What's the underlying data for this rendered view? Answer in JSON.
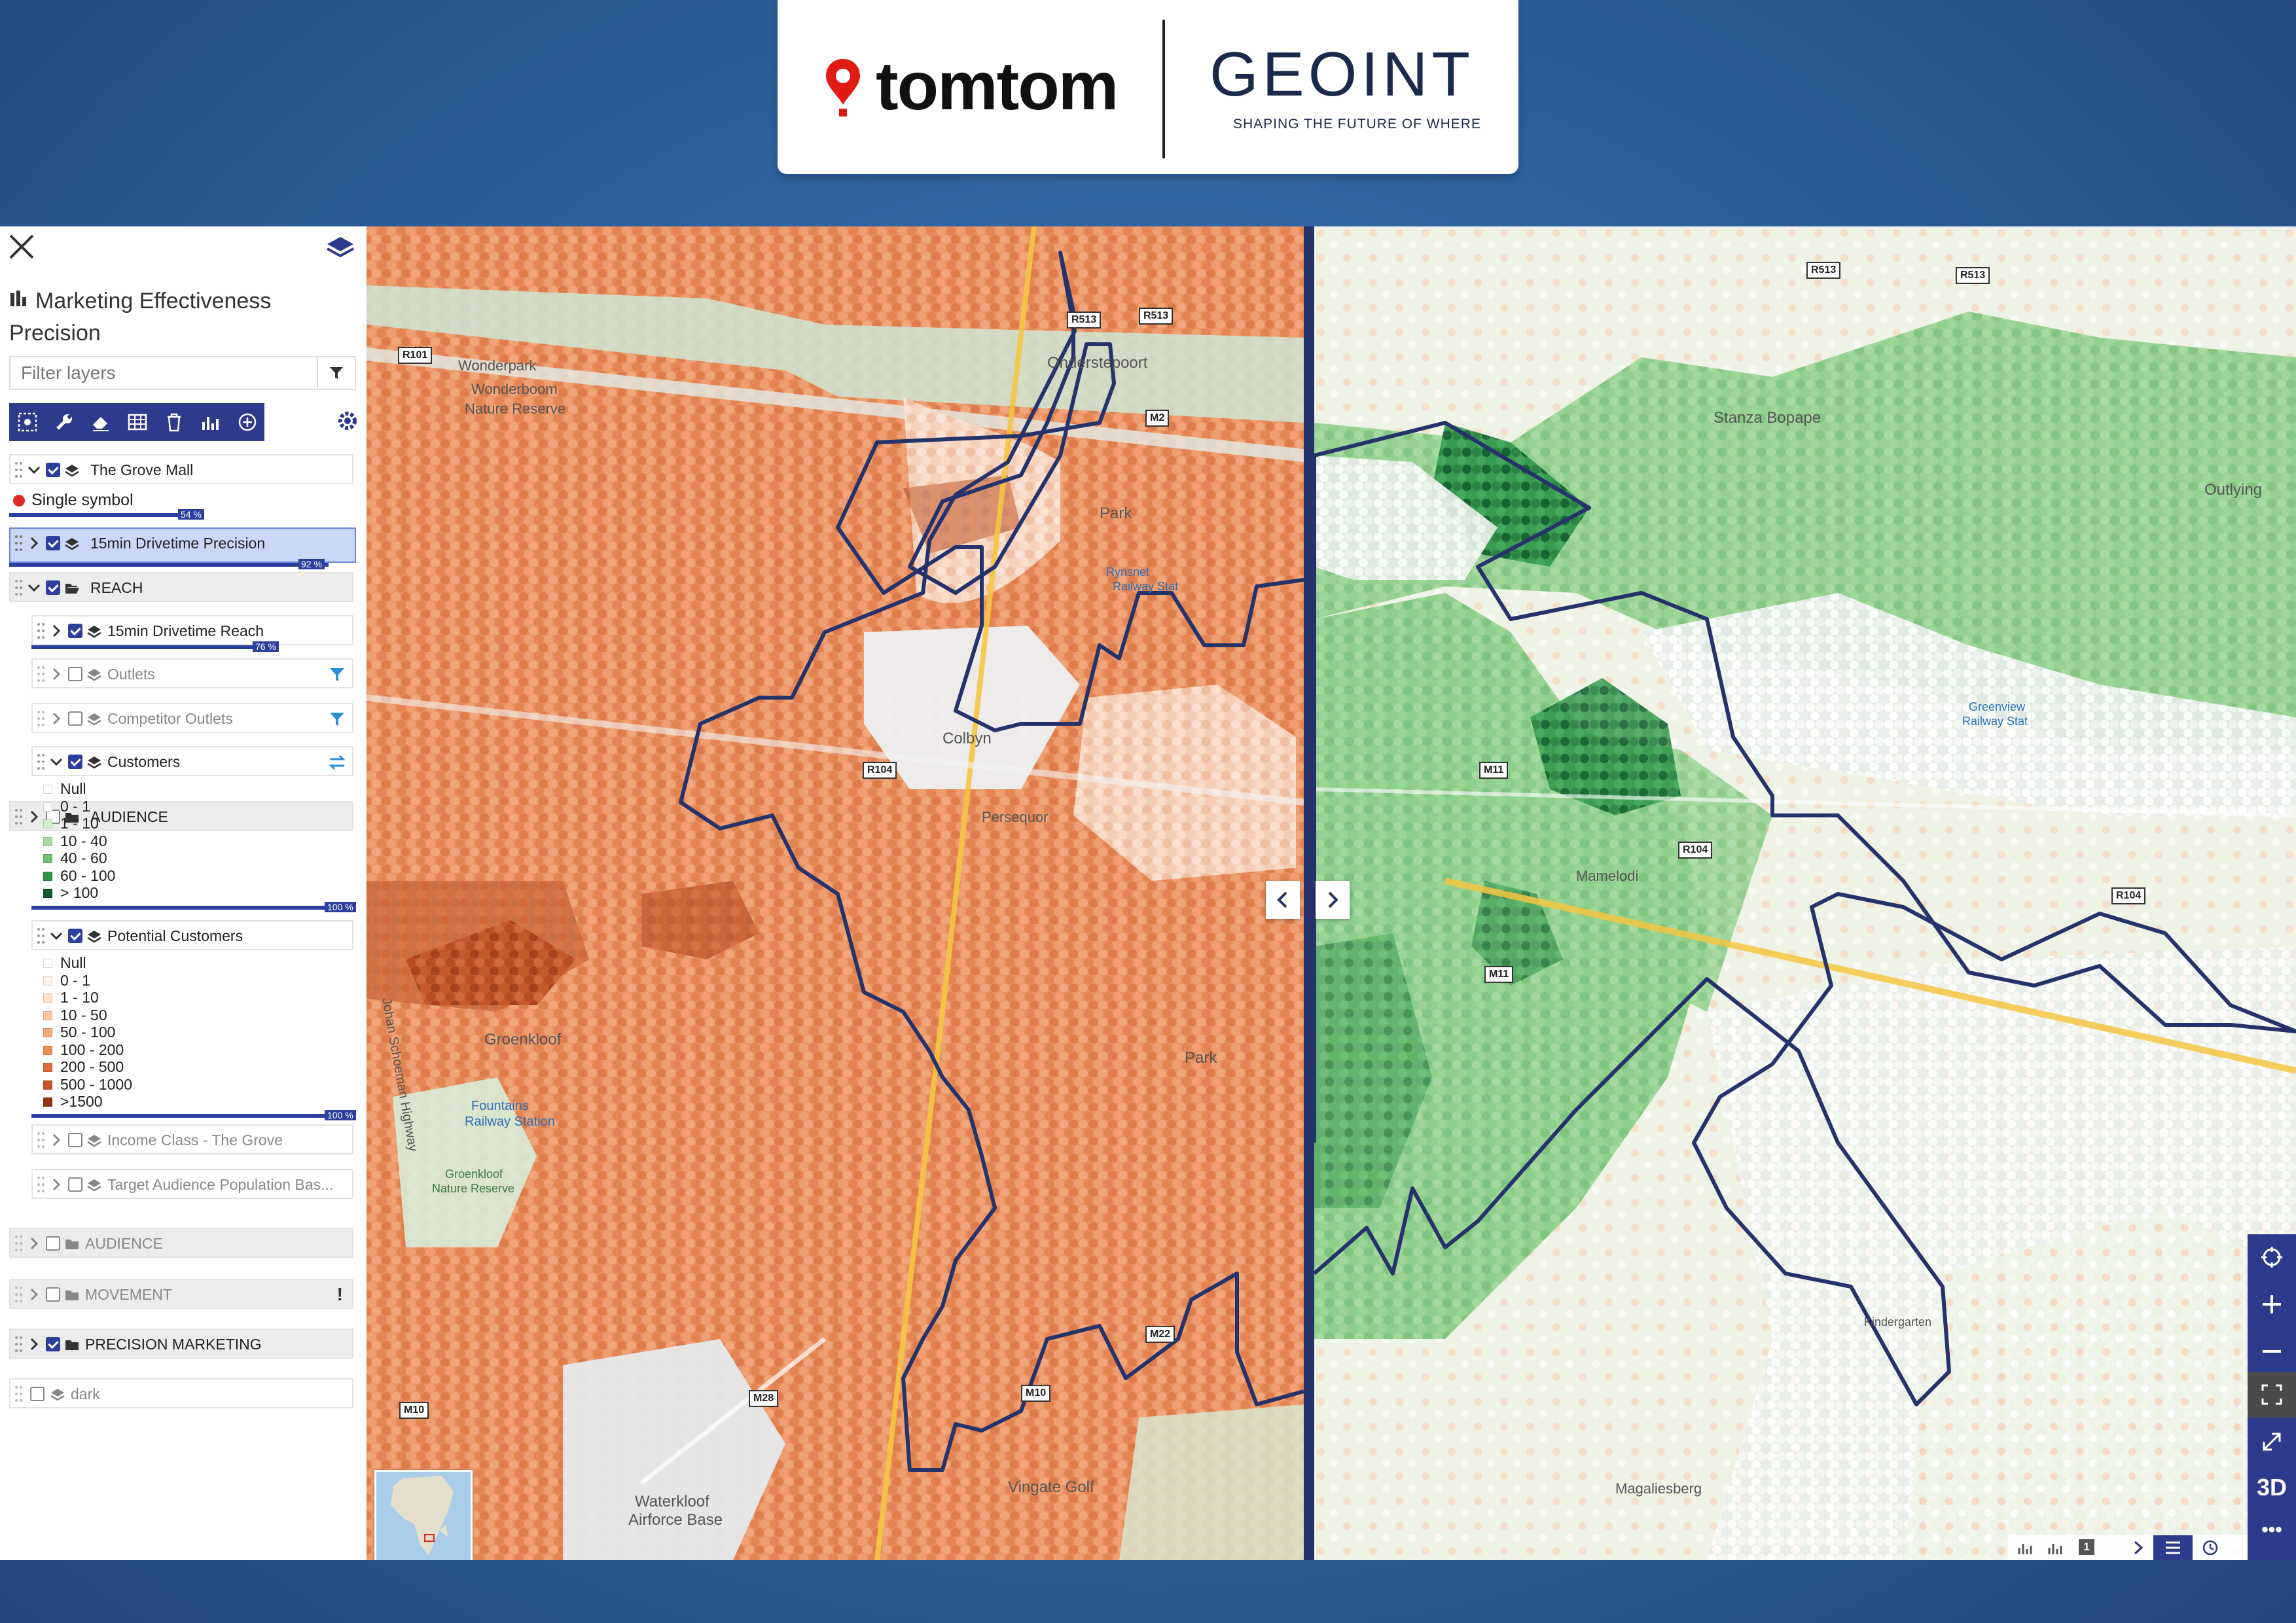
{
  "header": {
    "brand_left": "tomtom",
    "brand_right": "GEOINT",
    "tagline": "SHAPING THE FUTURE OF WHERE"
  },
  "panel": {
    "title": "Marketing Effectiveness Precision",
    "filter_placeholder": "Filter layers",
    "toolbar_icons": [
      "select-icon",
      "wrench-icon",
      "eraser-icon",
      "table-icon",
      "trash-icon",
      "chart-icon",
      "add-icon"
    ],
    "layers": {
      "grove_mall": {
        "label": "The Grove Mall",
        "checked": true,
        "expanded": true,
        "symbol_label": "Single symbol",
        "symbol_color": "#e02828",
        "opacity": "54 %"
      },
      "drivetime_precision": {
        "label": "15min Drivetime Precision",
        "checked": true,
        "selected": true,
        "opacity": "92 %"
      },
      "reach": {
        "label": "REACH",
        "checked": true,
        "expanded": true,
        "drivetime_reach": {
          "label": "15min Drivetime Reach",
          "checked": true,
          "opacity": "76 %"
        },
        "outlets": {
          "label": "Outlets",
          "checked": false
        },
        "competitor_outlets": {
          "label": "Competitor Outlets",
          "checked": false
        },
        "customers": {
          "label": "Customers",
          "checked": true,
          "opacity": "100 %",
          "legend": [
            {
              "label": "Null",
              "color": "#ffffff"
            },
            {
              "label": "0 - 1",
              "color": "#f4fbf2"
            },
            {
              "label": "1 - 10",
              "color": "#d4eecd"
            },
            {
              "label": "10 - 40",
              "color": "#a6dba0"
            },
            {
              "label": "40 - 60",
              "color": "#6fbf73"
            },
            {
              "label": "60 - 100",
              "color": "#2e9549"
            },
            {
              "label": "> 100",
              "color": "#0b5a2a"
            }
          ]
        },
        "potential_customers": {
          "label": "Potential Customers",
          "checked": true,
          "opacity": "100 %",
          "legend": [
            {
              "label": "Null",
              "color": "#ffffff"
            },
            {
              "label": "0 - 1",
              "color": "#fff3ea"
            },
            {
              "label": "1 - 10",
              "color": "#fde0c8"
            },
            {
              "label": "10 - 50",
              "color": "#fbc9a4"
            },
            {
              "label": "50 - 100",
              "color": "#f6aa7c"
            },
            {
              "label": "100 - 200",
              "color": "#ee8c58"
            },
            {
              "label": "200 - 500",
              "color": "#de6e3c"
            },
            {
              "label": "500 - 1000",
              "color": "#c4532a"
            },
            {
              "label": ">1500",
              "color": "#8e3516"
            }
          ]
        },
        "income_class": {
          "label": "Income Class - The Grove",
          "checked": false
        },
        "target_audience": {
          "label": "Target Audience Population Bas...",
          "checked": false
        }
      },
      "audience": {
        "label": "AUDIENCE",
        "checked": false
      },
      "movement": {
        "label": "MOVEMENT",
        "checked": false,
        "alert": "!"
      },
      "precision_marketing": {
        "label": "PRECISION MARKETING",
        "checked": true
      },
      "dark": {
        "label": "dark",
        "checked": false
      }
    }
  },
  "map_left": {
    "labels": [
      "Wonderboom",
      "Nature Reserve",
      "Onderstepoort",
      "Colbyn",
      "Persequor",
      "Groenkloof",
      "Fountains",
      "Railway Station",
      "Groenkloof",
      "Nature Reserve",
      "Park",
      "Park",
      "Waterkloof",
      "Airforce Base",
      "Vingate Golf",
      "Rynsnet",
      "Railway Stat",
      "Johan Schoeman Highway",
      "Wonderpark"
    ],
    "road_shields": [
      "R101",
      "R513",
      "R513",
      "R104",
      "M10",
      "M10",
      "M28",
      "M22",
      "M2"
    ]
  },
  "map_right": {
    "labels": [
      "Stanza Bopape",
      "Outlying",
      "Greenview",
      "Railway Stat",
      "Mamelodi",
      "Kindergarten",
      "Magaliesberg"
    ],
    "road_shields": [
      "R513",
      "R513",
      "R104",
      "M11",
      "M11",
      "R104"
    ]
  },
  "map_controls": {
    "three_d": "3D",
    "more": "•••",
    "status_badge": "1"
  },
  "colors": {
    "brand_navy": "#2e3a8c",
    "boundary": "#26326a",
    "choropleth_orange": "#e8905e",
    "choropleth_green": "#6fbf73"
  }
}
